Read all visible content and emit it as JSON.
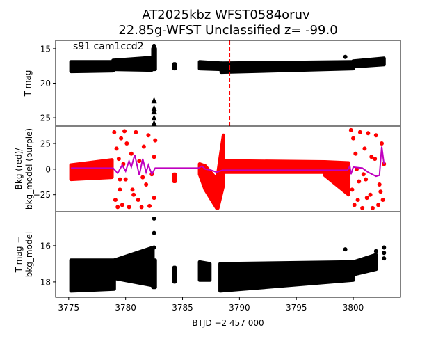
{
  "chart_data": {
    "type": "scatter",
    "title_lines": [
      "AT2025kbz  WFST0584oruv",
      "22.85g-WFST Unclassified z= -99.0"
    ],
    "annotation": "s91 cam1ccd2",
    "xlabel": "BTJD −2 457 000",
    "xlim": [
      3773.85,
      3804.15
    ],
    "xticks": [
      3775,
      3780,
      3785,
      3790,
      3795,
      3800
    ],
    "xtick_labels": [
      "3775",
      "3780",
      "3785",
      "3790",
      "3795",
      "3800"
    ],
    "marker_time": 3789.14,
    "colors": {
      "mag": "#000000",
      "bkg": "#ff0000",
      "model": "#bf00bf",
      "marker": "#ff0000"
    },
    "panels": [
      {
        "id": "tmag",
        "ylabel_lines": [
          "T mag"
        ],
        "ylim": [
          26.2,
          13.8
        ],
        "yticks": [
          15,
          20,
          25
        ],
        "ytick_labels": [
          "15",
          "20",
          "25"
        ],
        "color": "#000000",
        "envelopes": [
          [
            3775.2,
            3778.9,
            16.9,
            18.3,
            16.9,
            18.2
          ],
          [
            3778.9,
            3782.3,
            16.7,
            18.0,
            16.3,
            18.1
          ],
          [
            3782.4,
            3782.6,
            15.0,
            18.0,
            15.0,
            18.0
          ],
          [
            3784.25,
            3784.35,
            17.2,
            17.9,
            17.2,
            17.9
          ],
          [
            3786.5,
            3788.4,
            16.9,
            17.9,
            17.1,
            18.0
          ],
          [
            3788.4,
            3800.0,
            17.1,
            18.4,
            16.9,
            17.9
          ],
          [
            3800.0,
            3802.7,
            16.8,
            17.6,
            16.4,
            17.3
          ]
        ],
        "points": [
          [
            3782.5,
            14.6
          ],
          [
            3782.5,
            15.6
          ],
          [
            3782.5,
            16.2
          ],
          [
            3799.3,
            16.2
          ]
        ],
        "upper_limits": [
          [
            3782.5,
            22.5
          ],
          [
            3782.5,
            23.6
          ],
          [
            3782.5,
            24.1
          ],
          [
            3782.5,
            25.0
          ],
          [
            3782.5,
            25.8
          ]
        ]
      },
      {
        "id": "bkg",
        "ylabel_lines": [
          "Bkg (red)/",
          "bkg_model (purple)"
        ],
        "ylim": [
          -41.5,
          42
        ],
        "yticks": [
          -25,
          0,
          25
        ],
        "ytick_labels": [
          "−25",
          "0",
          "25"
        ],
        "color": "#ff0000",
        "envelopes": [
          [
            3775.2,
            3778.8,
            -10,
            4,
            -8,
            9
          ],
          [
            3784.25,
            3784.35,
            -12,
            -5,
            -12,
            -5
          ],
          [
            3786.5,
            3787.0,
            -5,
            5,
            -20,
            3
          ],
          [
            3787.0,
            3788.0,
            -20,
            3,
            -38,
            -10
          ],
          [
            3788.1,
            3788.6,
            -38,
            -5,
            -15,
            33
          ],
          [
            3788.6,
            3797.5,
            -3,
            8,
            -3,
            7
          ],
          [
            3797.5,
            3799.6,
            -6,
            7,
            -25,
            6
          ]
        ],
        "points": [
          [
            3779.0,
            36
          ],
          [
            3779.1,
            -30
          ],
          [
            3779.2,
            20
          ],
          [
            3779.3,
            -37
          ],
          [
            3779.4,
            10
          ],
          [
            3779.5,
            -20
          ],
          [
            3779.6,
            30
          ],
          [
            3779.7,
            -35
          ],
          [
            3779.8,
            5
          ],
          [
            3779.9,
            37
          ],
          [
            3780.0,
            -10
          ],
          [
            3780.1,
            25
          ],
          [
            3780.3,
            -37
          ],
          [
            3780.5,
            15
          ],
          [
            3780.7,
            -25
          ],
          [
            3780.9,
            36
          ],
          [
            3781.1,
            -30
          ],
          [
            3781.2,
            8
          ],
          [
            3781.4,
            -37
          ],
          [
            3781.6,
            22
          ],
          [
            3781.8,
            -15
          ],
          [
            3782.0,
            33
          ],
          [
            3782.1,
            -36
          ],
          [
            3782.3,
            -5
          ],
          [
            3782.5,
            12
          ],
          [
            3782.5,
            -28
          ],
          [
            3782.6,
            28
          ],
          [
            3781.5,
            -8
          ],
          [
            3780.6,
            -20
          ],
          [
            3779.5,
            -10
          ],
          [
            3799.8,
            38
          ],
          [
            3799.9,
            -20
          ],
          [
            3800.0,
            30
          ],
          [
            3800.1,
            -35
          ],
          [
            3800.2,
            15
          ],
          [
            3800.4,
            -30
          ],
          [
            3800.6,
            36
          ],
          [
            3800.8,
            -38
          ],
          [
            3801.0,
            20
          ],
          [
            3801.1,
            -10
          ],
          [
            3801.3,
            35
          ],
          [
            3801.5,
            -25
          ],
          [
            3801.7,
            -38
          ],
          [
            3801.9,
            10
          ],
          [
            3802.0,
            33
          ],
          [
            3802.2,
            -35
          ],
          [
            3802.3,
            -15
          ],
          [
            3802.5,
            25
          ],
          [
            3802.6,
            -30
          ],
          [
            3802.7,
            5
          ],
          [
            3800.3,
            0
          ],
          [
            3800.9,
            -5
          ],
          [
            3801.6,
            12
          ],
          [
            3802.4,
            -22
          ],
          [
            3800.5,
            -12
          ],
          [
            3801.2,
            -28
          ]
        ],
        "model": [
          [
            3775.2,
            1
          ],
          [
            3777,
            1
          ],
          [
            3778.9,
            1
          ],
          [
            3779.3,
            -4
          ],
          [
            3779.7,
            4
          ],
          [
            3780.0,
            -2
          ],
          [
            3780.3,
            8
          ],
          [
            3780.5,
            2
          ],
          [
            3780.8,
            14
          ],
          [
            3781.0,
            4
          ],
          [
            3781.2,
            -6
          ],
          [
            3781.5,
            10
          ],
          [
            3781.8,
            -3
          ],
          [
            3782.0,
            4
          ],
          [
            3782.3,
            -5
          ],
          [
            3782.6,
            1
          ],
          [
            3786.4,
            1
          ],
          [
            3786.7,
            3
          ],
          [
            3787.0,
            0
          ],
          [
            3787.5,
            -1
          ],
          [
            3788.0,
            -3
          ],
          [
            3788.5,
            -1
          ],
          [
            3789.5,
            -1
          ],
          [
            3795,
            -1
          ],
          [
            3798,
            -1
          ],
          [
            3799.5,
            -1
          ],
          [
            3799.7,
            3
          ],
          [
            3799.8,
            -5
          ],
          [
            3800.0,
            2
          ],
          [
            3800.8,
            1
          ],
          [
            3801.3,
            -3
          ],
          [
            3802.0,
            -7
          ],
          [
            3802.3,
            -6
          ],
          [
            3802.5,
            22
          ],
          [
            3802.7,
            5
          ]
        ]
      },
      {
        "id": "tmag-minus-model",
        "ylabel_lines": [
          "T mag −",
          "bkg_model"
        ],
        "ylim": [
          18.85,
          14.12
        ],
        "yticks": [
          16,
          18
        ],
        "ytick_labels": [
          "16",
          "18"
        ],
        "color": "#000000",
        "envelopes": [
          [
            3775.2,
            3779.0,
            16.8,
            18.5,
            16.8,
            18.4
          ],
          [
            3779.0,
            3782.4,
            16.8,
            17.8,
            16.1,
            18.2
          ],
          [
            3782.4,
            3782.6,
            16.8,
            18.3,
            16.8,
            18.3
          ],
          [
            3784.25,
            3784.35,
            17.2,
            18.0,
            17.2,
            18.0
          ],
          [
            3786.5,
            3787.4,
            16.9,
            17.9,
            17.0,
            17.9
          ],
          [
            3788.3,
            3800.0,
            17.0,
            18.5,
            16.9,
            17.9
          ],
          [
            3800.0,
            3802.0,
            16.9,
            17.6,
            16.5,
            17.3
          ]
        ],
        "points": [
          [
            3782.5,
            14.5
          ],
          [
            3782.5,
            15.3
          ],
          [
            3782.5,
            16.1
          ],
          [
            3799.3,
            16.2
          ],
          [
            3802.7,
            16.1
          ],
          [
            3802.7,
            16.4
          ],
          [
            3802.7,
            16.7
          ],
          [
            3802.0,
            16.3
          ]
        ]
      }
    ]
  }
}
